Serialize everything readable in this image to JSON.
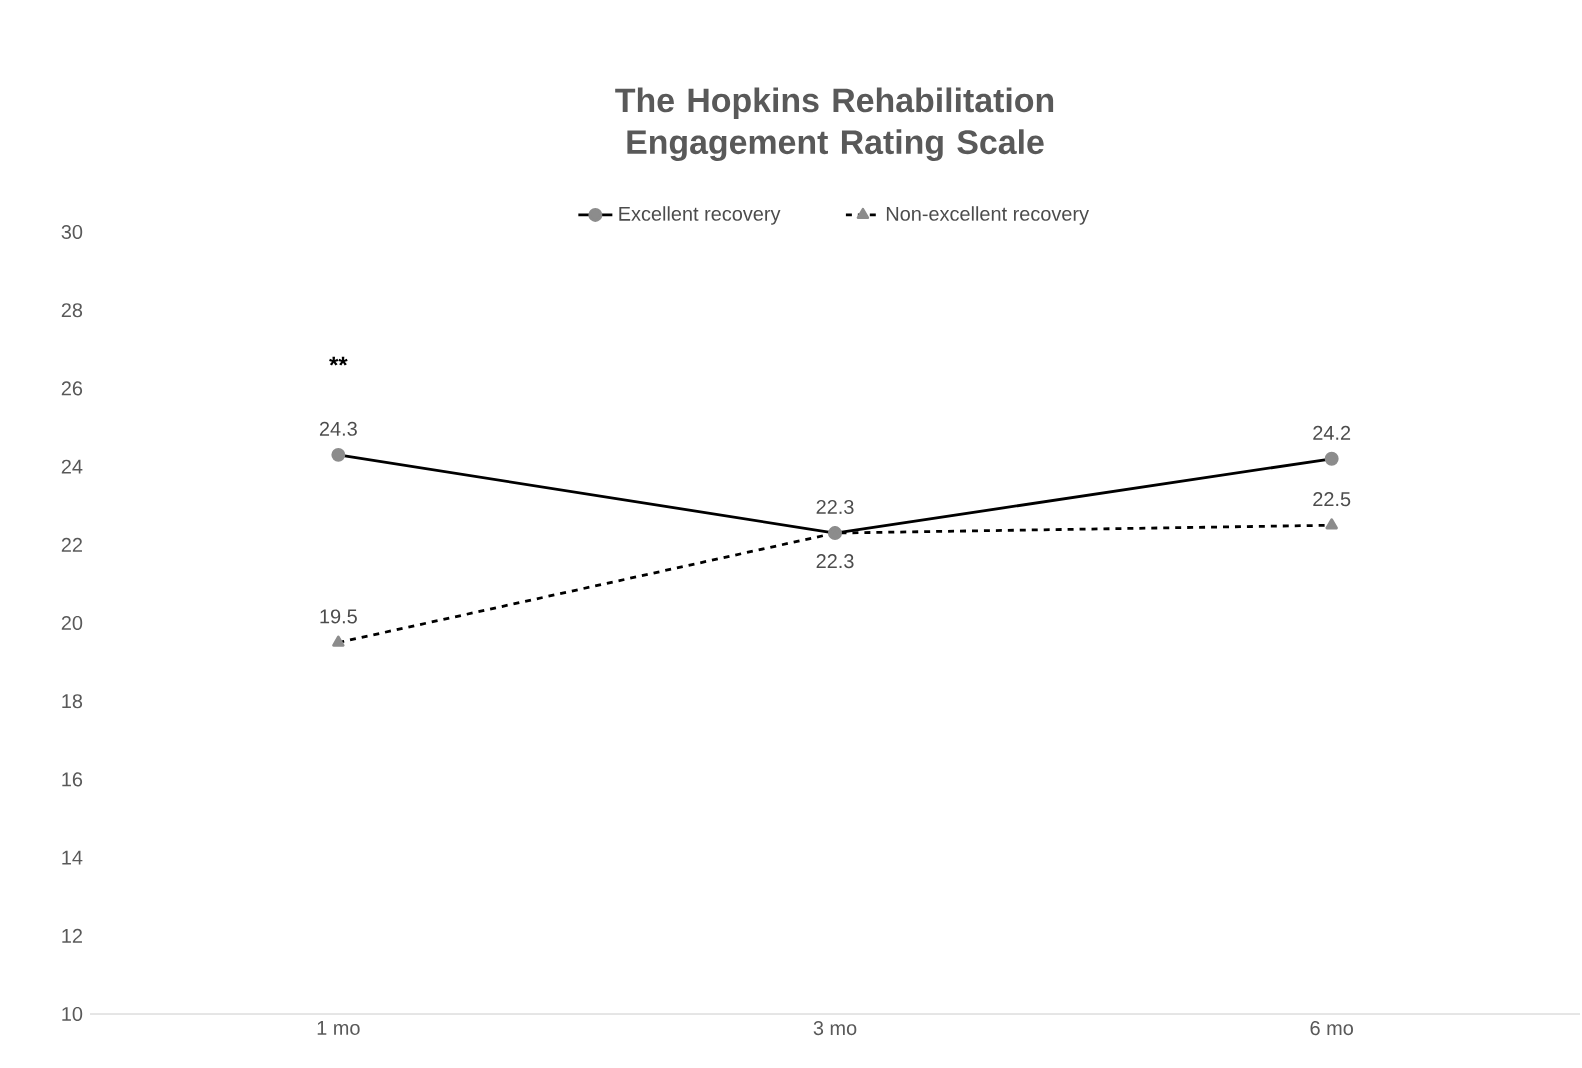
{
  "chart_data": {
    "type": "line",
    "title": "The Hopkins Rehabilitation Engagement Rating Scale",
    "categories": [
      "1 mo",
      "3 mo",
      "6 mo"
    ],
    "series": [
      {
        "name": "Excellent recovery",
        "color": "#000000",
        "values": [
          24.3,
          22.3,
          24.2
        ],
        "marker": "circle",
        "line_style": "solid"
      },
      {
        "name": "Non-excellent recovery",
        "color": "#000000",
        "values": [
          19.5,
          22.3,
          22.5
        ],
        "marker": "triangle",
        "line_style": "dashed"
      }
    ],
    "ylim": [
      10,
      30
    ],
    "yticks": [
      10,
      12,
      14,
      16,
      18,
      20,
      22,
      24,
      26,
      28,
      30
    ],
    "data_labels": true,
    "legend": "top",
    "grid": false,
    "annotations": [
      "**"
    ]
  }
}
